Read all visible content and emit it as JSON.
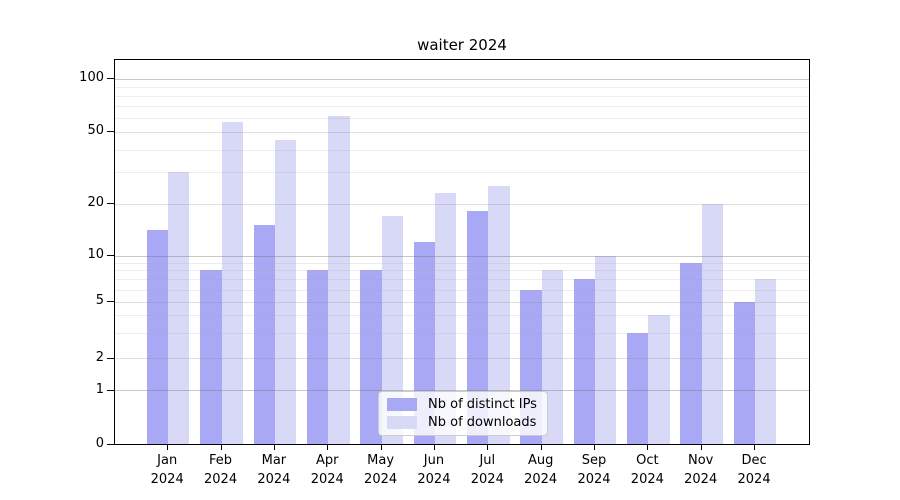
{
  "chart_data": {
    "type": "bar",
    "title": "waiter 2024",
    "year": "2024",
    "months": [
      "Jan",
      "Feb",
      "Mar",
      "Apr",
      "May",
      "Jun",
      "Jul",
      "Aug",
      "Sep",
      "Oct",
      "Nov",
      "Dec"
    ],
    "categories": [
      "Jan 2024",
      "Feb 2024",
      "Mar 2024",
      "Apr 2024",
      "May 2024",
      "Jun 2024",
      "Jul 2024",
      "Aug 2024",
      "Sep 2024",
      "Oct 2024",
      "Nov 2024",
      "Dec 2024"
    ],
    "series": [
      {
        "name": "Nb of distinct IPs",
        "color": "#a8a8f5",
        "values": [
          14,
          8,
          15,
          8,
          8,
          12,
          18,
          6,
          7,
          3,
          9,
          5
        ]
      },
      {
        "name": "Nb of downloads",
        "color": "#d8d8f7",
        "values": [
          30,
          57,
          45,
          62,
          17,
          23,
          25,
          8,
          10,
          4,
          20,
          7
        ]
      }
    ],
    "y_axis": {
      "scale": "symlog",
      "ticks": [
        0,
        1,
        2,
        5,
        10,
        20,
        50,
        100
      ],
      "minor_gridlines": [
        3,
        4,
        6,
        7,
        8,
        9,
        30,
        40,
        60,
        70,
        80,
        90
      ],
      "ylim": [
        0,
        128
      ]
    },
    "grid": "on",
    "legend_position": "lower center"
  },
  "colors": {
    "background": "#ffffff",
    "axis": "#000000",
    "bar_distinct_ips": "#a8a8f5",
    "bar_downloads": "#d8d8f7"
  }
}
